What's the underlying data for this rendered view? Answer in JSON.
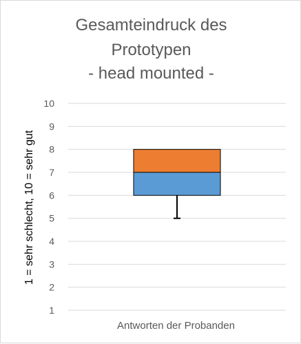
{
  "chart_data": {
    "type": "box",
    "title_lines": [
      "Gesamteindruck des",
      "Prototypen",
      "- head mounted -"
    ],
    "ylabel": "1 = sehr schlecht, 10 = sehr gut",
    "categories": [
      "Antworten der Probanden"
    ],
    "ylim": [
      1,
      10
    ],
    "yticks": [
      1,
      2,
      3,
      4,
      5,
      6,
      7,
      8,
      9,
      10
    ],
    "grid": true,
    "box": {
      "whisker_low": 5,
      "q1": 6,
      "median": 7,
      "q3": 8,
      "whisker_high": 8
    },
    "colors": {
      "lower_box": "#5b9bd5",
      "upper_box": "#ed7d31",
      "gridline": "#d9d9d9",
      "whisker": "#000000",
      "box_edge": "#000000"
    }
  }
}
